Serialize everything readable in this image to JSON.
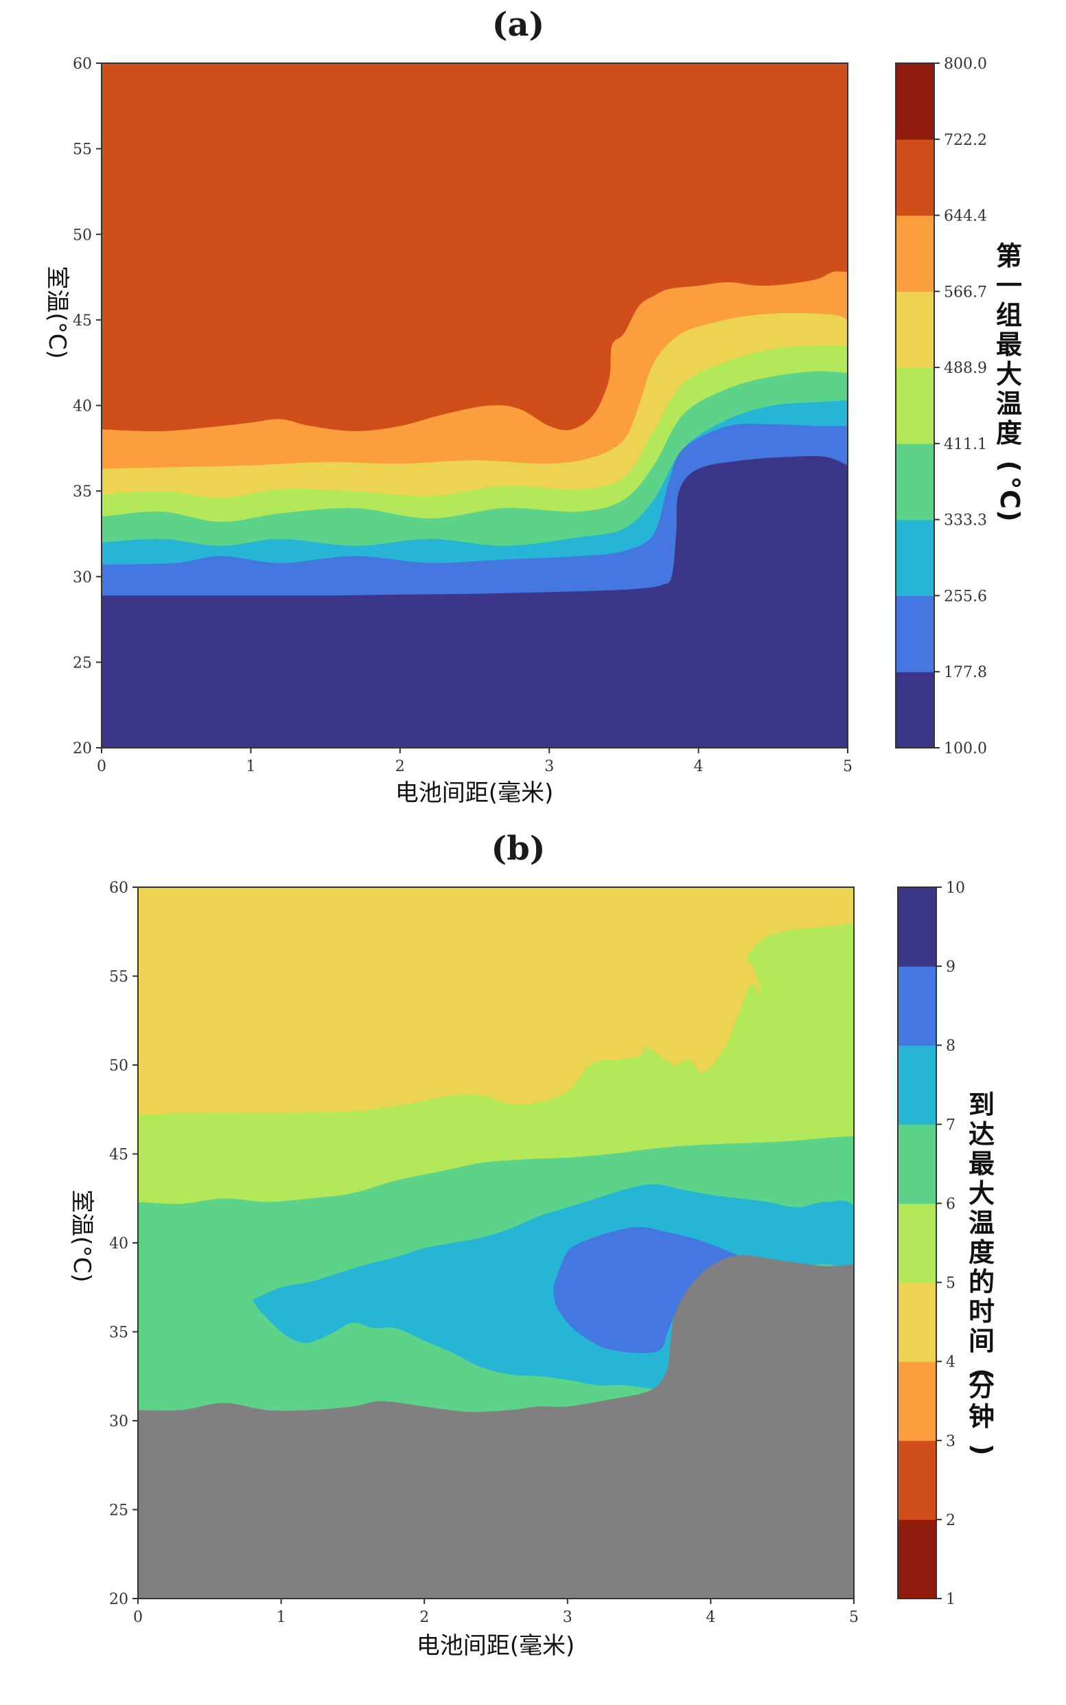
{
  "chart_data": [
    {
      "type": "contour",
      "title": "(a)",
      "xlabel": "电池间距(毫米)",
      "ylabel": "室温(°C)",
      "xlim": [
        0,
        5
      ],
      "ylim": [
        20,
        60
      ],
      "x_ticks": [
        "0",
        "1",
        "2",
        "3",
        "4",
        "5"
      ],
      "y_ticks": [
        "20",
        "25",
        "30",
        "35",
        "40",
        "45",
        "50",
        "55",
        "60"
      ],
      "colorbar": {
        "label": "第一组最大温度(°C)",
        "ticks": [
          "100.0",
          "177.8",
          "255.6",
          "333.3",
          "411.1",
          "488.9",
          "566.7",
          "644.4",
          "722.2",
          "800.0"
        ],
        "colors": [
          "#3b3687",
          "#4478e0",
          "#26b5d4",
          "#5dd38a",
          "#b3e85a",
          "#ecd452",
          "#fb9e3e",
          "#cf4e19",
          "#8e1b0c"
        ]
      },
      "boundaries": [
        {
          "levels": "100.0-177.8 | 177.8-255.6",
          "x": [
            0,
            0.5,
            1,
            1.5,
            2,
            2.5,
            3,
            3.4,
            3.6,
            3.75,
            3.82,
            3.85,
            3.87,
            4.0,
            4.3,
            4.6,
            4.85,
            5
          ],
          "y": [
            28.9,
            28.9,
            28.9,
            28.9,
            28.95,
            29.0,
            29.1,
            29.2,
            29.3,
            29.5,
            30.0,
            32.5,
            35.0,
            36.3,
            36.8,
            37.0,
            37.0,
            36.5
          ]
        },
        {
          "levels": "177.8-255.6 | 255.6-333.3",
          "x": [
            0,
            0.5,
            0.8,
            1.2,
            1.7,
            2.2,
            2.7,
            3.2,
            3.5,
            3.7,
            3.8,
            3.9,
            4.2,
            4.5,
            4.8,
            5
          ],
          "y": [
            30.7,
            30.8,
            31.2,
            30.8,
            31.2,
            30.8,
            31.0,
            31.2,
            31.5,
            32.5,
            35.5,
            37.5,
            38.8,
            38.9,
            38.8,
            38.8
          ]
        },
        {
          "levels": "255.6-333.3 | 333.3-411.1",
          "x": [
            0,
            0.4,
            0.8,
            1.2,
            1.7,
            2.2,
            2.7,
            3.2,
            3.5,
            3.7,
            3.9,
            4.2,
            4.5,
            4.8,
            5
          ],
          "y": [
            32.0,
            32.2,
            31.8,
            32.2,
            31.8,
            32.2,
            31.8,
            32.3,
            32.8,
            34.5,
            37.5,
            39.2,
            40.0,
            40.2,
            40.3
          ]
        },
        {
          "levels": "333.3-411.1 | 411.1-488.9",
          "x": [
            0,
            0.4,
            0.8,
            1.2,
            1.7,
            2.2,
            2.7,
            3.2,
            3.5,
            3.7,
            3.9,
            4.2,
            4.5,
            4.8,
            5
          ],
          "y": [
            33.5,
            33.8,
            33.2,
            33.7,
            34.0,
            33.4,
            34.0,
            33.8,
            34.5,
            36.5,
            39.5,
            41.0,
            41.7,
            42.0,
            41.9
          ]
        },
        {
          "levels": "411.1-488.9 | 488.9-566.7",
          "x": [
            0,
            0.4,
            0.8,
            1.2,
            1.7,
            2.2,
            2.7,
            3.2,
            3.5,
            3.7,
            3.9,
            4.2,
            4.5,
            4.8,
            5
          ],
          "y": [
            34.8,
            35.0,
            34.6,
            35.1,
            35.0,
            34.7,
            35.3,
            35.1,
            35.8,
            38.5,
            41.3,
            42.6,
            43.3,
            43.5,
            43.5
          ]
        },
        {
          "levels": "488.9-566.7 | 566.7-644.4",
          "x": [
            0,
            0.5,
            1,
            1.5,
            2,
            2.5,
            3,
            3.3,
            3.5,
            3.6,
            3.7,
            3.85,
            4.0,
            4.3,
            4.6,
            4.9,
            5
          ],
          "y": [
            36.3,
            36.4,
            36.5,
            36.7,
            36.6,
            36.8,
            36.6,
            37.0,
            38.0,
            40.0,
            42.5,
            44.0,
            44.6,
            45.2,
            45.4,
            45.3,
            45.0
          ]
        },
        {
          "levels": "566.7-644.4 | 644.4-722.2",
          "x": [
            0,
            0.4,
            0.8,
            1.0,
            1.2,
            1.4,
            1.7,
            2.0,
            2.3,
            2.6,
            2.8,
            3.0,
            3.15,
            3.3,
            3.4,
            3.42,
            3.5,
            3.6,
            3.7,
            3.8,
            4.0,
            4.2,
            4.4,
            4.6,
            4.8,
            4.9,
            5
          ],
          "y": [
            38.6,
            38.5,
            38.8,
            39.0,
            39.2,
            38.8,
            38.5,
            38.8,
            39.5,
            40.0,
            39.8,
            38.8,
            38.6,
            39.5,
            41.5,
            43.5,
            44.2,
            45.8,
            46.4,
            46.8,
            47.0,
            47.2,
            47.0,
            47.1,
            47.4,
            47.8,
            47.8
          ]
        }
      ]
    },
    {
      "type": "contour",
      "title": "(b)",
      "xlabel": "电池间距(毫米)",
      "ylabel": "室温(°C)",
      "xlim": [
        0,
        5
      ],
      "ylim": [
        20,
        60
      ],
      "x_ticks": [
        "0",
        "1",
        "2",
        "3",
        "4",
        "5"
      ],
      "y_ticks": [
        "20",
        "25",
        "30",
        "35",
        "40",
        "45",
        "50",
        "55",
        "60"
      ],
      "colorbar": {
        "label": "到达最大温度的时间(分钟)",
        "ticks": [
          "1",
          "2",
          "3",
          "4",
          "5",
          "6",
          "7",
          "8",
          "9",
          "10"
        ],
        "colors": [
          "#8e1b0c",
          "#cf4e19",
          "#fb9e3e",
          "#ecd452",
          "#b3e85a",
          "#5dd38a",
          "#26b5d4",
          "#4478e0",
          "#3b3687"
        ]
      },
      "undefined_region_color": "#808080",
      "boundaries": [
        {
          "levels": "undefined | 6-7",
          "x": [
            0,
            0.3,
            0.6,
            0.9,
            1.2,
            1.5,
            1.7,
            2.0,
            2.3,
            2.6,
            2.8,
            3.0,
            3.3,
            3.5,
            3.6,
            3.65,
            3.7,
            3.72,
            3.75,
            3.85,
            4.0,
            4.2,
            4.5,
            4.8,
            5
          ],
          "y": [
            30.6,
            30.6,
            31.0,
            30.6,
            30.6,
            30.8,
            31.1,
            30.8,
            30.5,
            30.6,
            30.8,
            30.8,
            31.2,
            31.5,
            31.8,
            32.2,
            33.0,
            34.5,
            36.0,
            37.5,
            38.7,
            39.3,
            39.0,
            38.7,
            38.8
          ]
        },
        {
          "levels": "6-7 | 7-8",
          "x": [
            0.8,
            0.85,
            1.0,
            1.1,
            1.2,
            1.35,
            1.5,
            1.65,
            1.8,
            2.0,
            2.2,
            2.4,
            2.6,
            2.8,
            3.0,
            3.2,
            3.4,
            3.6,
            3.72,
            3.9,
            4.1,
            4.2,
            4.4,
            4.6,
            4.8,
            5,
            5,
            4.8,
            4.6,
            4.4,
            4.2,
            4.0,
            3.8,
            3.6,
            3.4,
            3.2,
            3.0,
            2.8,
            2.6,
            2.4,
            2.2,
            2.0,
            1.8,
            1.6,
            1.4,
            1.2,
            1.0,
            0.8
          ],
          "y": [
            36.8,
            36.2,
            35.0,
            34.5,
            34.4,
            34.9,
            35.5,
            35.2,
            35.2,
            34.5,
            33.8,
            33.0,
            32.6,
            32.5,
            32.3,
            32.0,
            32.0,
            31.8,
            31.9,
            37.0,
            39.0,
            39.3,
            39.0,
            38.7,
            38.8,
            38.8,
            42.0,
            42.3,
            42.0,
            42.3,
            42.5,
            42.7,
            43.0,
            43.3,
            43.0,
            42.5,
            42.0,
            41.5,
            40.8,
            40.3,
            40.0,
            39.7,
            39.2,
            38.8,
            38.3,
            37.8,
            37.5,
            36.8
          ]
        },
        {
          "levels": "7-8 | 8-9",
          "x": [
            2.9,
            2.92,
            3.0,
            3.1,
            3.2,
            3.3,
            3.5,
            3.65,
            3.7,
            3.8,
            3.95,
            4.1,
            4.2,
            4.1,
            3.9,
            3.7,
            3.5,
            3.3,
            3.15,
            3.0,
            2.9
          ],
          "y": [
            37.5,
            36.5,
            35.5,
            34.8,
            34.3,
            34.0,
            33.8,
            34.0,
            35.0,
            36.8,
            38.2,
            38.8,
            39.2,
            39.6,
            40.2,
            40.6,
            40.9,
            40.6,
            40.2,
            39.5,
            37.5
          ]
        },
        {
          "levels": "5-6 | 6-7",
          "x": [
            0,
            0.3,
            0.6,
            0.9,
            1.2,
            1.5,
            1.8,
            2.1,
            2.4,
            2.7,
            3.0,
            3.3,
            3.6,
            3.9,
            4.2,
            4.5,
            4.8,
            5
          ],
          "y": [
            42.3,
            42.2,
            42.5,
            42.3,
            42.5,
            42.8,
            43.5,
            44.0,
            44.5,
            44.7,
            44.8,
            45.0,
            45.3,
            45.5,
            45.6,
            45.7,
            45.9,
            46.0
          ]
        },
        {
          "levels": "4-5 | 5-6",
          "x": [
            0,
            0.5,
            1.0,
            1.5,
            1.8,
            2.0,
            2.2,
            2.4,
            2.6,
            2.8,
            3.0,
            3.1,
            3.2,
            3.35,
            3.5,
            3.55,
            3.65,
            3.75,
            3.85,
            3.95,
            4.1,
            4.2,
            4.28,
            4.35,
            4.3,
            4.25,
            4.35,
            4.5,
            4.7,
            4.85,
            5
          ],
          "y": [
            47.2,
            47.3,
            47.3,
            47.4,
            47.7,
            48.0,
            48.3,
            48.3,
            47.8,
            47.9,
            48.5,
            49.5,
            50.2,
            50.3,
            50.5,
            51.0,
            50.5,
            50.0,
            50.3,
            49.6,
            51.0,
            53.0,
            54.5,
            54.0,
            55.5,
            56.0,
            57.0,
            57.5,
            57.7,
            57.8,
            58.0
          ]
        }
      ]
    }
  ]
}
